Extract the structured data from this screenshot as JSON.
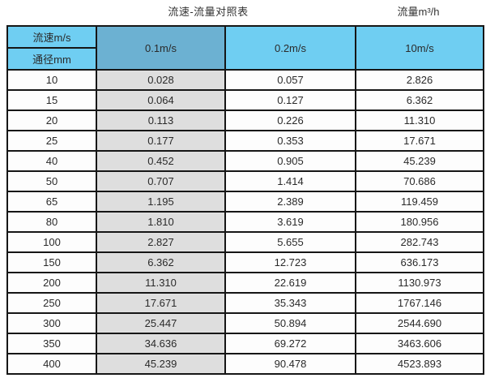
{
  "header": {
    "title": "流速-流量对照表",
    "flow_unit_label": "流量m³/h"
  },
  "table": {
    "corner_top": "流速m/s",
    "corner_bottom": "通径mm",
    "velocity_columns": [
      "0.1m/s",
      "0.2m/s",
      "10m/s"
    ]
  },
  "chart_data": {
    "type": "table",
    "title": "流速-流量对照表",
    "unit_label": "流量m³/h",
    "columns": [
      "通径mm",
      "0.1m/s",
      "0.2m/s",
      "10m/s"
    ],
    "rows": [
      [
        "10",
        "0.028",
        "0.057",
        "2.826"
      ],
      [
        "15",
        "0.064",
        "0.127",
        "6.362"
      ],
      [
        "20",
        "0.113",
        "0.226",
        "11.310"
      ],
      [
        "25",
        "0.177",
        "0.353",
        "17.671"
      ],
      [
        "40",
        "0.452",
        "0.905",
        "45.239"
      ],
      [
        "50",
        "0.707",
        "1.414",
        "70.686"
      ],
      [
        "65",
        "1.195",
        "2.389",
        "119.459"
      ],
      [
        "80",
        "1.810",
        "3.619",
        "180.956"
      ],
      [
        "100",
        "2.827",
        "5.655",
        "282.743"
      ],
      [
        "150",
        "6.362",
        "12.723",
        "636.173"
      ],
      [
        "200",
        "11.310",
        "22.619",
        "1130.973"
      ],
      [
        "250",
        "17.671",
        "35.343",
        "1767.146"
      ],
      [
        "300",
        "25.447",
        "50.894",
        "2544.690"
      ],
      [
        "350",
        "34.636",
        "69.272",
        "3463.606"
      ],
      [
        "400",
        "45.239",
        "90.478",
        "4523.893"
      ]
    ]
  },
  "colors": {
    "header_blue": "#6fcef2",
    "highlight_column_blue": "#6cb1d2",
    "highlight_column_gray": "#dedede",
    "border": "#161616"
  }
}
